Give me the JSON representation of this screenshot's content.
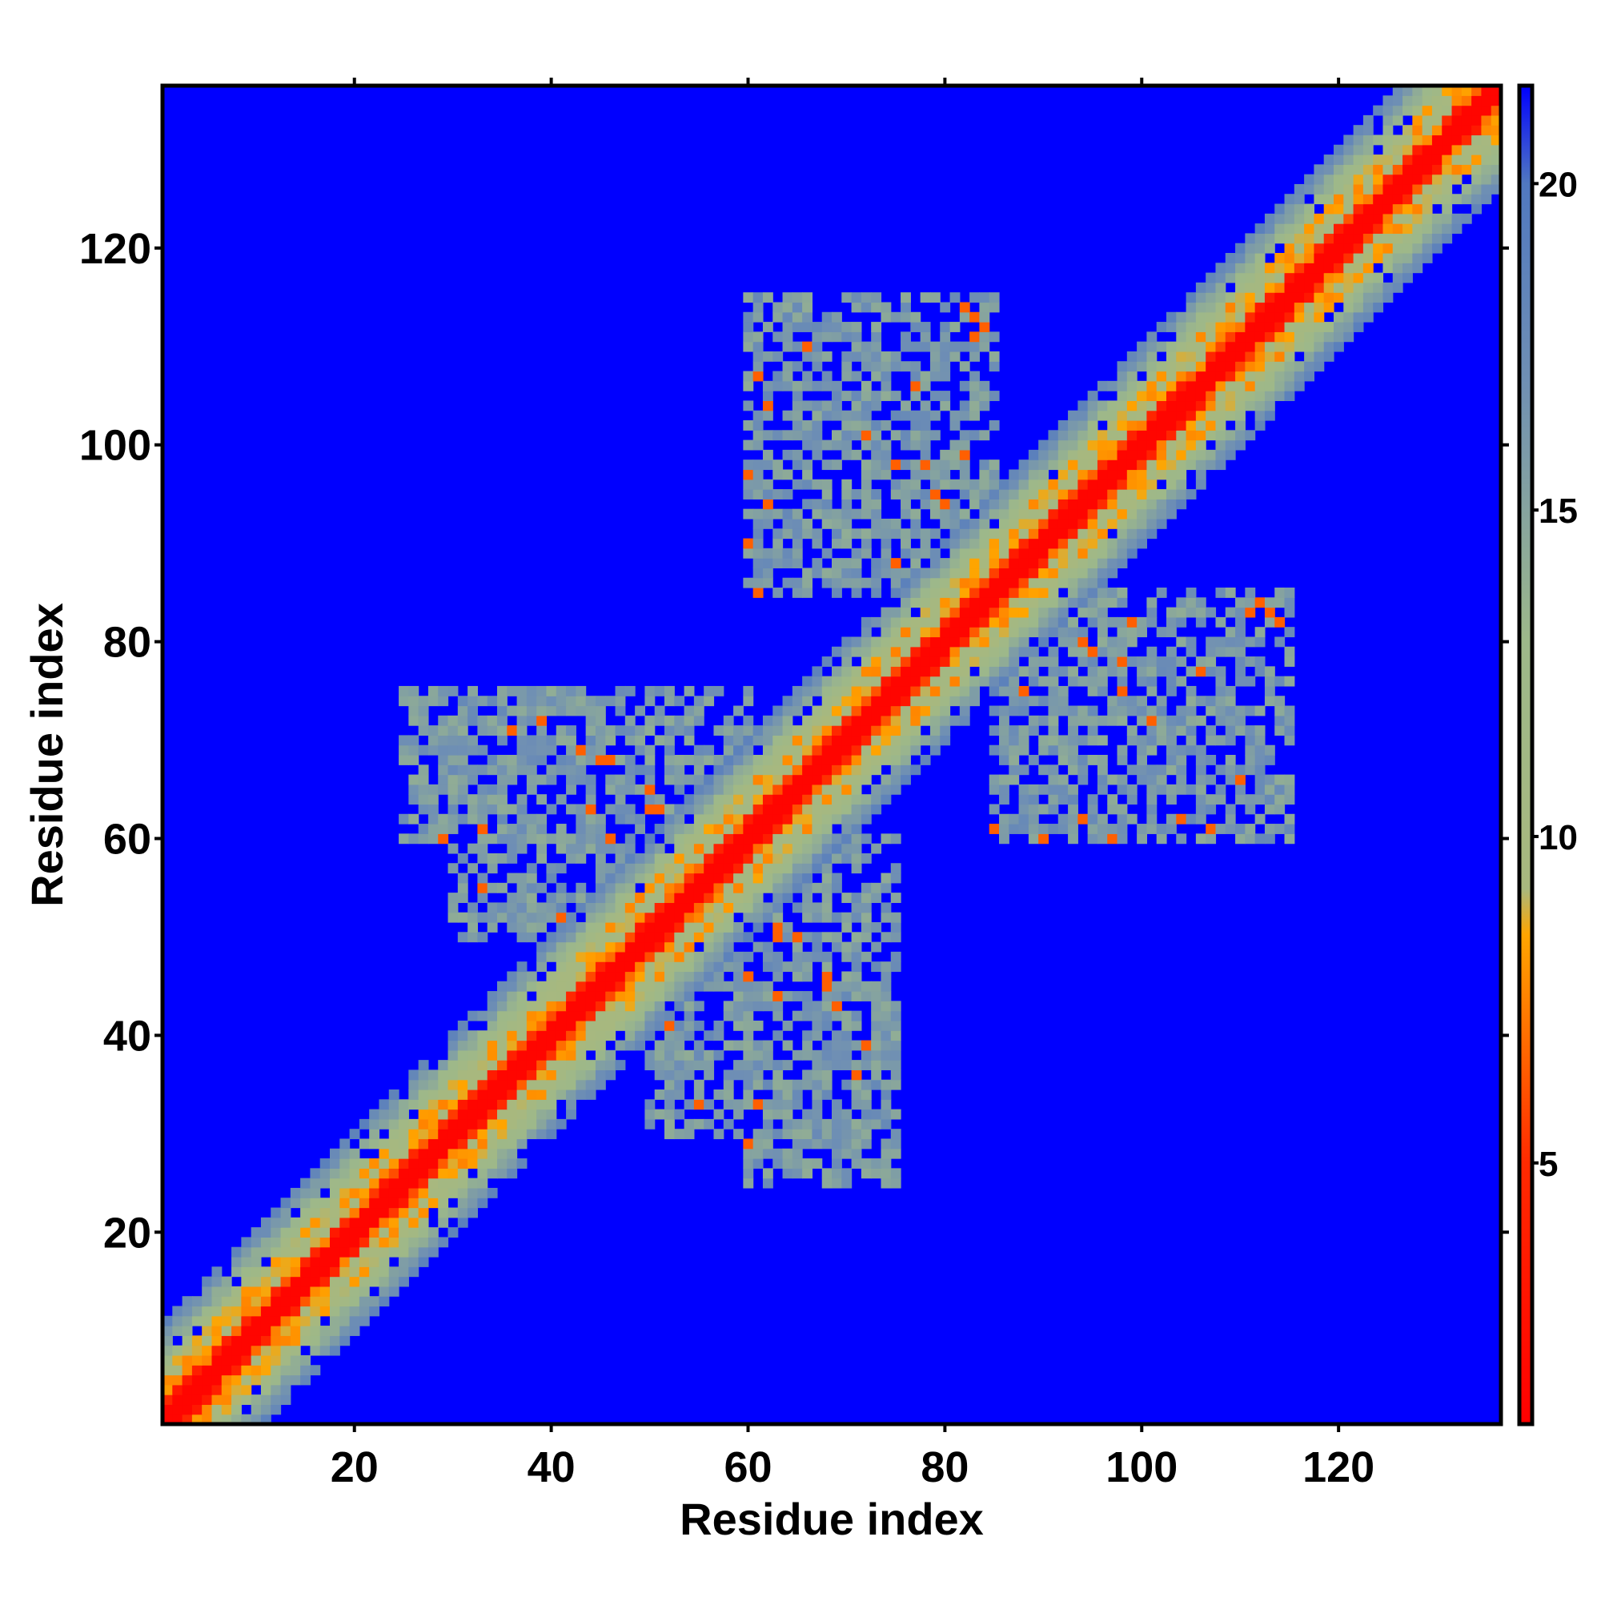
{
  "chart_data": {
    "type": "heatmap",
    "title": "",
    "xlabel": "Residue index",
    "ylabel": "Residue index",
    "x_range": [
      1,
      136
    ],
    "y_range": [
      1,
      136
    ],
    "n_residues": 136,
    "x_ticks": [
      20,
      40,
      60,
      80,
      100,
      120
    ],
    "y_ticks": [
      20,
      40,
      60,
      80,
      100,
      120
    ],
    "colorbar": {
      "range": [
        1,
        21.5
      ],
      "ticks": [
        5,
        10,
        15,
        20
      ],
      "stops": [
        {
          "value": 1,
          "color": "#ff0000"
        },
        {
          "value": 5,
          "color": "#ff2a00"
        },
        {
          "value": 8.5,
          "color": "#ffa500"
        },
        {
          "value": 9.2,
          "color": "#a8b87e"
        },
        {
          "value": 13,
          "color": "#9db88a"
        },
        {
          "value": 17,
          "color": "#6f8fb4"
        },
        {
          "value": 20,
          "color": "#5078c0"
        },
        {
          "value": 21.5,
          "color": "#0000ff"
        }
      ]
    },
    "background_value": 21.5,
    "diagonal_band": {
      "core_halfwidth": 2,
      "band_halfwidth": 10
    },
    "off_diagonal_contact_regions": [
      {
        "rows": [
          30,
          60
        ],
        "cols": [
          50,
          75
        ]
      },
      {
        "rows": [
          60,
          75
        ],
        "cols": [
          25,
          50
        ]
      },
      {
        "rows": [
          60,
          80
        ],
        "cols": [
          85,
          115
        ]
      },
      {
        "rows": [
          85,
          115
        ],
        "cols": [
          60,
          85
        ]
      }
    ],
    "grid": false,
    "legend": "colorbar-right"
  }
}
